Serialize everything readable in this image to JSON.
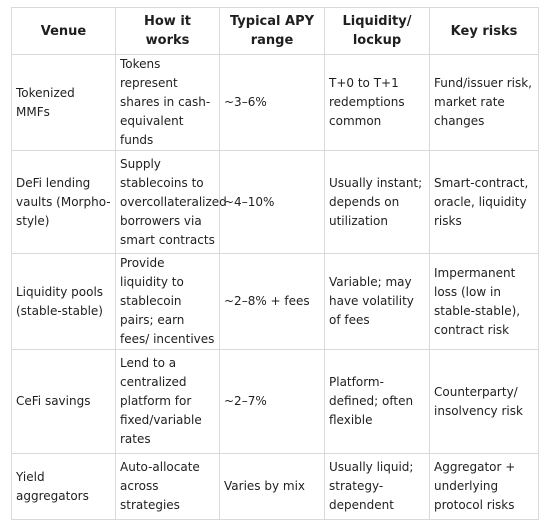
{
  "table": {
    "headers": [
      "Venue",
      "How it works",
      "Typical APY range",
      "Liquidity/ lockup",
      "Key risks"
    ],
    "rows": [
      [
        "Tokenized MMFs",
        "Tokens represent shares in cash-equivalent funds",
        "~3–6%",
        "T+0 to T+1 redemptions common",
        "Fund/issuer risk, market rate changes"
      ],
      [
        "DeFi lending vaults (Morpho-style)",
        "Supply stablecoins to overcollateralized borrowers via smart contracts",
        "~4–10%",
        "Usually instant; depends on utilization",
        "Smart-contract, oracle, liquidity risks"
      ],
      [
        "Liquidity pools (stable-stable)",
        "Provide liquidity to stablecoin pairs; earn fees/ incentives",
        "~2–8% + fees",
        "Variable; may have volatility of fees",
        "Impermanent loss (low in stable-stable), contract risk"
      ],
      [
        "CeFi savings",
        "Lend to a centralized platform for fixed/variable rates",
        "~2–7%",
        "Platform-defined; often flexible",
        "Counterparty/ insolvency risk"
      ],
      [
        "Yield aggregators",
        "Auto-allocate across strategies",
        "Varies by mix",
        "Usually liquid; strategy-dependent",
        "Aggregator + underlying protocol risks"
      ]
    ]
  }
}
